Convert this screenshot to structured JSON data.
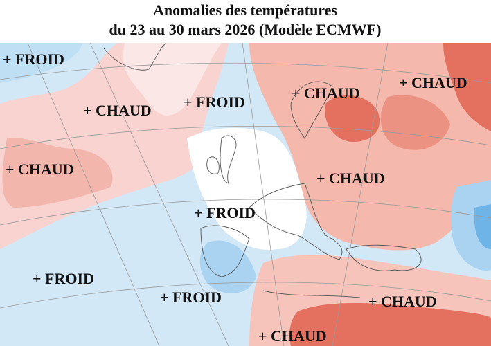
{
  "header": {
    "title": "Anomalies des températures",
    "subtitle": "du 23 au 30 mars 2026 (Modèle ECMWF)"
  },
  "labels": [
    "+ FROID",
    "+ CHAUD",
    "+ FROID",
    "+ CHAUD",
    "+ CHAUD",
    "+ CHAUD",
    "+ CHAUD",
    "+ FROID",
    "+ FROID",
    "+ FROID",
    "+ CHAUD",
    "+ CHAUD"
  ]
}
